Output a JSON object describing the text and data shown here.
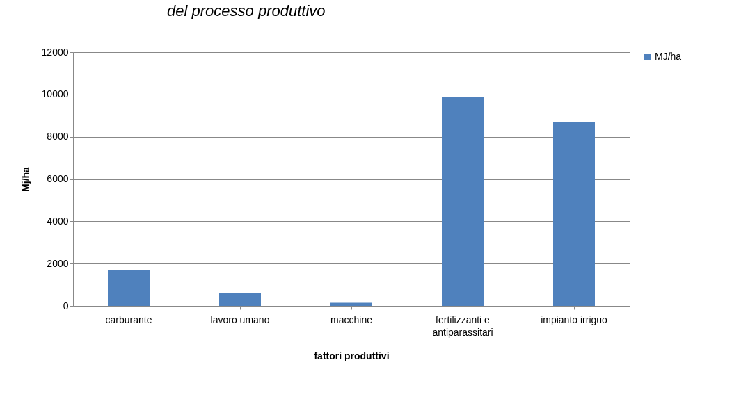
{
  "chart_data": {
    "type": "bar",
    "title": "del processo produttivo",
    "xlabel": "fattori produttivi",
    "ylabel": "Mj/ha",
    "categories": [
      "carburante",
      "lavoro umano",
      "macchine",
      "fertilizzanti e antiparassitari",
      "impianto irriguo"
    ],
    "series": [
      {
        "name": "MJ/ha",
        "color": "#4f81bd",
        "values": [
          1700,
          600,
          150,
          9900,
          8700
        ]
      }
    ],
    "ylim": [
      0,
      12000
    ],
    "yticks": [
      0,
      2000,
      4000,
      6000,
      8000,
      10000,
      12000
    ],
    "grid": "y",
    "legend": "right"
  }
}
